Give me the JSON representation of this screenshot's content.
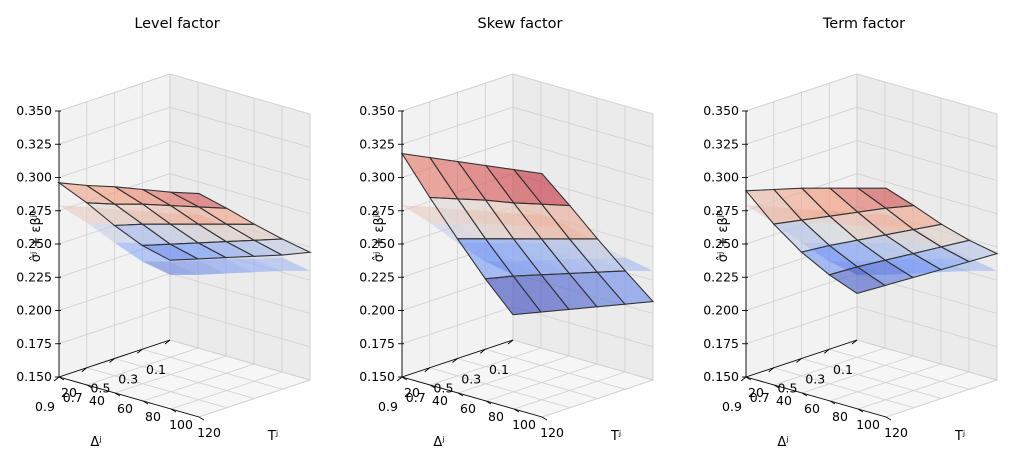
{
  "chart_data": [
    {
      "type": "surface",
      "title": "Level factor",
      "zlabel": "σ̂ʲ + εβʲ¹",
      "xlabel": "Δʲ",
      "ylabel": "Tʲ",
      "x_ticks": [
        "0.1",
        "0.3",
        "0.5",
        "0.7",
        "0.9"
      ],
      "y_ticks": [
        "20",
        "40",
        "60",
        "80",
        "100",
        "120"
      ],
      "z_ticks": [
        "0.150",
        "0.175",
        "0.200",
        "0.225",
        "0.250",
        "0.275",
        "0.300",
        "0.325",
        "0.350"
      ],
      "xlim": [
        0.1,
        0.9
      ],
      "ylim": [
        20,
        120
      ],
      "zlim": [
        0.15,
        0.35
      ],
      "grid": true,
      "colormap": "coolwarm",
      "delta_grid": [
        0.1,
        0.3,
        0.5,
        0.7,
        0.9
      ],
      "maturity_grid": [
        20,
        40,
        60,
        80,
        100,
        120
      ],
      "series": [
        {
          "values": [
            [
              0.21,
              0.217,
              0.224,
              0.231,
              0.238,
              0.246
            ],
            [
              0.228,
              0.235,
              0.242,
              0.249,
              0.256,
              0.263
            ],
            [
              0.25,
              0.257,
              0.263,
              0.269,
              0.275,
              0.281
            ],
            [
              0.274,
              0.279,
              0.285,
              0.29,
              0.295,
              0.3
            ],
            [
              0.296,
              0.3,
              0.305,
              0.309,
              0.313,
              0.318
            ]
          ]
        },
        {
          "values": [
            [
              0.199,
              0.205,
              0.212,
              0.219,
              0.226,
              0.232
            ],
            [
              0.216,
              0.222,
              0.229,
              0.236,
              0.242,
              0.249
            ],
            [
              0.237,
              0.243,
              0.249,
              0.255,
              0.261,
              0.267
            ],
            [
              0.259,
              0.264,
              0.27,
              0.275,
              0.28,
              0.286
            ],
            [
              0.279,
              0.284,
              0.288,
              0.293,
              0.297,
              0.302
            ]
          ]
        }
      ]
    },
    {
      "type": "surface",
      "title": "Skew factor",
      "zlabel": "σ̂ʲ + εβʲ²",
      "xlabel": "Δʲ",
      "ylabel": "Tʲ",
      "x_ticks": [
        "0.1",
        "0.3",
        "0.5",
        "0.7",
        "0.9"
      ],
      "y_ticks": [
        "20",
        "40",
        "60",
        "80",
        "100",
        "120"
      ],
      "z_ticks": [
        "0.150",
        "0.175",
        "0.200",
        "0.225",
        "0.250",
        "0.275",
        "0.300",
        "0.325",
        "0.350"
      ],
      "xlim": [
        0.1,
        0.9
      ],
      "ylim": [
        20,
        120
      ],
      "zlim": [
        0.15,
        0.35
      ],
      "grid": true,
      "colormap": "coolwarm",
      "delta_grid": [
        0.1,
        0.3,
        0.5,
        0.7,
        0.9
      ],
      "maturity_grid": [
        20,
        40,
        60,
        80,
        100,
        120
      ],
      "series": [
        {
          "values": [
            [
              0.169,
              0.177,
              0.185,
              0.193,
              0.201,
              0.209
            ],
            [
              0.203,
              0.211,
              0.218,
              0.225,
              0.232,
              0.239
            ],
            [
              0.24,
              0.246,
              0.252,
              0.258,
              0.264,
              0.27
            ],
            [
              0.278,
              0.283,
              0.288,
              0.292,
              0.297,
              0.302
            ],
            [
              0.318,
              0.321,
              0.324,
              0.327,
              0.33,
              0.333
            ]
          ]
        },
        {
          "values": [
            [
              0.199,
              0.205,
              0.212,
              0.219,
              0.226,
              0.232
            ],
            [
              0.216,
              0.222,
              0.229,
              0.236,
              0.242,
              0.249
            ],
            [
              0.237,
              0.243,
              0.249,
              0.255,
              0.261,
              0.267
            ],
            [
              0.259,
              0.264,
              0.27,
              0.275,
              0.28,
              0.286
            ],
            [
              0.279,
              0.284,
              0.288,
              0.293,
              0.297,
              0.302
            ]
          ]
        }
      ]
    },
    {
      "type": "surface",
      "title": "Term factor",
      "zlabel": "σ̂ʲ + εβʲ³",
      "xlabel": "Δʲ",
      "ylabel": "Tʲ",
      "x_ticks": [
        "0.1",
        "0.3",
        "0.5",
        "0.7",
        "0.9"
      ],
      "y_ticks": [
        "20",
        "40",
        "60",
        "80",
        "100",
        "120"
      ],
      "z_ticks": [
        "0.150",
        "0.175",
        "0.200",
        "0.225",
        "0.250",
        "0.275",
        "0.300",
        "0.325",
        "0.350"
      ],
      "xlim": [
        0.1,
        0.9
      ],
      "ylim": [
        20,
        120
      ],
      "zlim": [
        0.15,
        0.35
      ],
      "grid": true,
      "colormap": "coolwarm",
      "delta_grid": [
        0.1,
        0.3,
        0.5,
        0.7,
        0.9
      ],
      "maturity_grid": [
        20,
        40,
        60,
        80,
        100,
        120
      ],
      "series": [
        {
          "values": [
            [
              0.185,
              0.197,
              0.209,
              0.221,
              0.233,
              0.245
            ],
            [
              0.206,
              0.218,
              0.229,
              0.24,
              0.251,
              0.262
            ],
            [
              0.23,
              0.241,
              0.251,
              0.261,
              0.271,
              0.281
            ],
            [
              0.258,
              0.267,
              0.276,
              0.285,
              0.294,
              0.302
            ],
            [
              0.29,
              0.297,
              0.304,
              0.31,
              0.316,
              0.322
            ]
          ]
        },
        {
          "values": [
            [
              0.199,
              0.205,
              0.212,
              0.219,
              0.226,
              0.232
            ],
            [
              0.216,
              0.222,
              0.229,
              0.236,
              0.242,
              0.249
            ],
            [
              0.237,
              0.243,
              0.249,
              0.255,
              0.261,
              0.267
            ],
            [
              0.259,
              0.264,
              0.27,
              0.275,
              0.28,
              0.286
            ],
            [
              0.279,
              0.284,
              0.288,
              0.293,
              0.297,
              0.302
            ]
          ]
        }
      ]
    }
  ]
}
